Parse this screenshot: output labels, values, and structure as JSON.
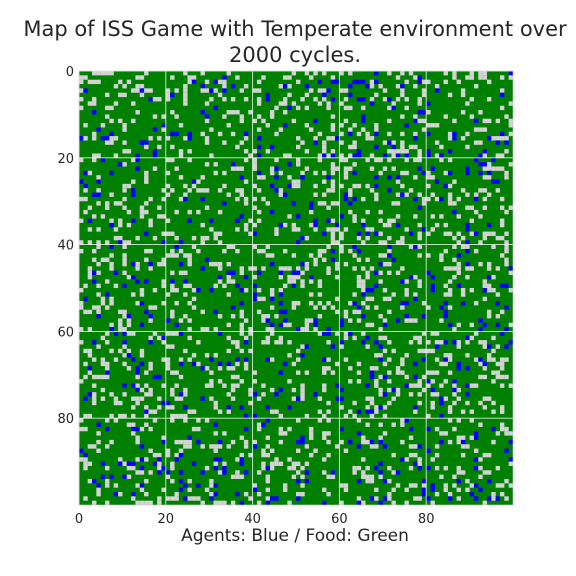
{
  "chart_data": {
    "type": "heatmap",
    "title_lines": [
      "Map of ISS Game with Temperate environment over",
      "2000 cycles."
    ],
    "xlabel": "Agents: Blue / Food: Green",
    "ylabel": "",
    "grid_size": [
      100,
      100
    ],
    "xlim": [
      0,
      100
    ],
    "ylim": [
      100,
      0
    ],
    "x_ticks": [
      0,
      20,
      40,
      60,
      80
    ],
    "y_ticks": [
      0,
      20,
      40,
      60,
      80
    ],
    "grid": true,
    "legend": "none",
    "colors": {
      "food": "#008000",
      "empty": "#d3d3d3",
      "agent": "#0000ff",
      "gridline": "#ffffff"
    },
    "cell_proportions": {
      "food": 0.78,
      "empty": 0.17,
      "agent": 0.05
    }
  }
}
